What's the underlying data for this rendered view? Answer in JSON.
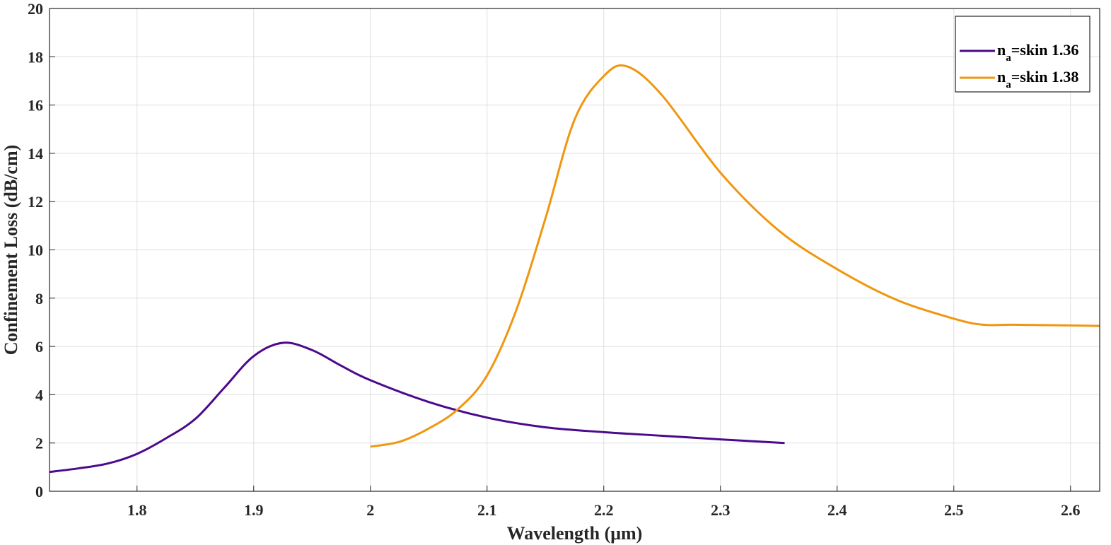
{
  "chart_data": {
    "type": "line",
    "xlabel": "Wavelength (μm)",
    "ylabel": "Confinement Loss (dB/cm)",
    "xlim": [
      1.725,
      2.625
    ],
    "ylim": [
      0,
      20
    ],
    "xticks": [
      1.8,
      1.9,
      2,
      2.1,
      2.2,
      2.3,
      2.4,
      2.5,
      2.6
    ],
    "xtick_labels": [
      "1.8",
      "1.9",
      "2",
      "2.1",
      "2.2",
      "2.3",
      "2.4",
      "2.5",
      "2.6"
    ],
    "yticks": [
      0,
      2,
      4,
      6,
      8,
      10,
      12,
      14,
      16,
      18,
      20
    ],
    "ytick_labels": [
      "0",
      "2",
      "4",
      "6",
      "8",
      "10",
      "12",
      "14",
      "16",
      "18",
      "20"
    ],
    "grid": true,
    "legend_position": "top-right",
    "series": [
      {
        "label_main": "n",
        "label_sub": "a",
        "label_rest": "=skin 1.36",
        "color": "#4B0A8C",
        "x": [
          1.725,
          1.75,
          1.775,
          1.8,
          1.825,
          1.85,
          1.875,
          1.9,
          1.925,
          1.95,
          1.975,
          2.0,
          2.05,
          2.1,
          2.15,
          2.2,
          2.25,
          2.3,
          2.355
        ],
        "y": [
          0.8,
          0.95,
          1.15,
          1.55,
          2.2,
          3.0,
          4.3,
          5.6,
          6.15,
          5.85,
          5.2,
          4.6,
          3.7,
          3.05,
          2.65,
          2.45,
          2.3,
          2.15,
          2.0
        ]
      },
      {
        "label_main": "n",
        "label_sub": "a",
        "label_rest": "=skin 1.38",
        "color": "#F0960F",
        "x": [
          2.0,
          2.025,
          2.05,
          2.075,
          2.1,
          2.125,
          2.15,
          2.175,
          2.2,
          2.22,
          2.25,
          2.3,
          2.35,
          2.4,
          2.45,
          2.5,
          2.525,
          2.55,
          2.6,
          2.625
        ],
        "y": [
          1.85,
          2.05,
          2.6,
          3.4,
          4.8,
          7.5,
          11.3,
          15.4,
          17.2,
          17.6,
          16.4,
          13.2,
          10.8,
          9.2,
          7.95,
          7.15,
          6.9,
          6.9,
          6.87,
          6.85
        ]
      }
    ]
  }
}
